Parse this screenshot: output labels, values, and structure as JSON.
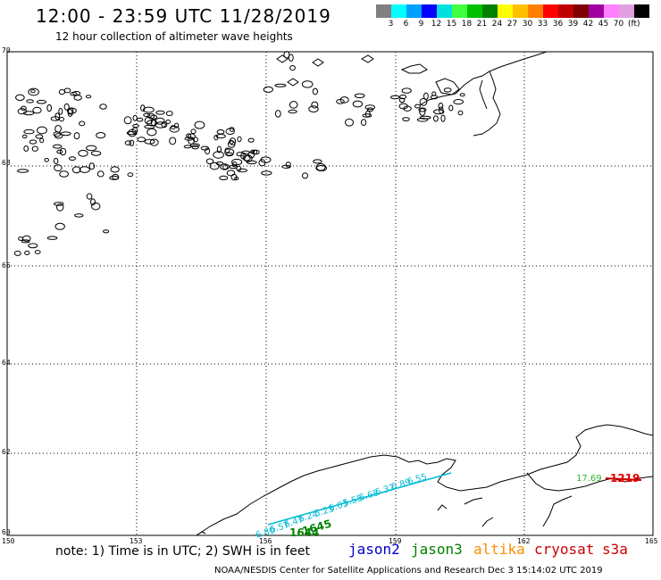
{
  "title": "12:00 - 23:59 UTC 11/28/2019",
  "subtitle": "12 hour collection of altimeter wave heights",
  "legend": {
    "colors": [
      "#808080",
      "#00ffff",
      "#00a0ff",
      "#0000ff",
      "#00e0e0",
      "#40ff40",
      "#00c000",
      "#008000",
      "#ffff00",
      "#ffc000",
      "#ff8000",
      "#ff0000",
      "#c00000",
      "#800000",
      "#a000a0",
      "#ff80ff",
      "#e0a0e0",
      "#000000"
    ],
    "ticks": [
      "3",
      "6",
      "9",
      "12",
      "15",
      "18",
      "21",
      "24",
      "27",
      "30",
      "33",
      "36",
      "39",
      "42",
      "45",
      "70"
    ],
    "unit": "(ft)"
  },
  "map": {
    "lat_labels": [
      "70",
      "68",
      "66",
      "64",
      "62",
      "60"
    ],
    "lon_labels": [
      "150",
      "153",
      "156",
      "159",
      "162",
      "165"
    ]
  },
  "swh_points": {
    "jason3_track": [
      "6.80",
      "6.57",
      "6.47",
      "6.24",
      "5.23",
      "6.03",
      "5.55",
      "6.68",
      "6.37",
      "6.89",
      "6.55"
    ],
    "cryosat_value": "17.69"
  },
  "pass_labels": {
    "jason3_a": "1645",
    "jason3_b": "1644",
    "cryosat": "1219"
  },
  "note": "note: 1) Time is in UTC; 2) SWH is in feet",
  "missions": [
    {
      "name": "jason2",
      "color": "#0000cc"
    },
    {
      "name": "jason3",
      "color": "#008000"
    },
    {
      "name": "altika",
      "color": "#ff8c00"
    },
    {
      "name": "cryosat",
      "color": "#cc0000"
    },
    {
      "name": "s3a",
      "color": "#cc0000"
    }
  ],
  "credit": "NOAA/NESDIS Center for Satellite Applications and Research    Dec  3 15:14:02 UTC 2019"
}
